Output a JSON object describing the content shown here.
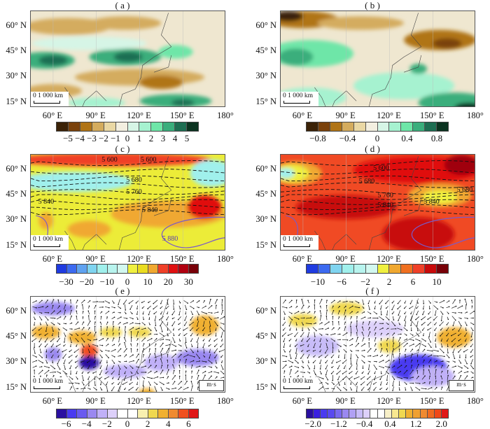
{
  "panels": [
    {
      "id": "a",
      "title": "( a )",
      "lat_ticks": [
        "60° N",
        "45° N",
        "30° N",
        "15° N"
      ],
      "lon_ticks": [
        "60° E",
        "90° E",
        "120° E",
        "150° E",
        "180°"
      ],
      "scale_bar": "0  1 000 km",
      "colorbar": {
        "colors": [
          "#3b2207",
          "#7a420c",
          "#b07416",
          "#d4ac5e",
          "#ead8a4",
          "#f3efe0",
          "#d6f5e6",
          "#a6f2d0",
          "#6ee6a8",
          "#3aae7c",
          "#1d6e52",
          "#0b3320"
        ],
        "labels": [
          "−5",
          "−4",
          "−3",
          "−2",
          "−1",
          "0",
          "1",
          "2",
          "3",
          "4",
          "5"
        ]
      },
      "contour_labels": [],
      "reference_vector": ""
    },
    {
      "id": "b",
      "title": "( b )",
      "lat_ticks": [
        "60° N",
        "45° N",
        "30° N",
        "15° N"
      ],
      "lon_ticks": [
        "60° E",
        "90° E",
        "120° E",
        "150° E",
        "180°"
      ],
      "scale_bar": "0  1 000 km",
      "colorbar": {
        "colors": [
          "#3b2207",
          "#7a420c",
          "#b07416",
          "#d4ac5e",
          "#ead8a4",
          "#f3efe0",
          "#d6f5e6",
          "#a6f2d0",
          "#6ee6a8",
          "#3aae7c",
          "#1d6e52",
          "#0b3320"
        ],
        "labels": [
          "−0.8",
          "−0.4",
          "0",
          "0.4",
          "0.8"
        ]
      },
      "contour_labels": [],
      "reference_vector": ""
    },
    {
      "id": "c",
      "title": "( c )",
      "lat_ticks": [
        "60° N",
        "45° N",
        "30° N",
        "15° N"
      ],
      "lon_ticks": [
        "60° E",
        "90° E",
        "120° E",
        "150° E",
        "180°"
      ],
      "scale_bar": "0  1 000 km",
      "colorbar": {
        "colors": [
          "#1f3be0",
          "#3c6af0",
          "#5fa2f0",
          "#7fd4f0",
          "#a0f0ec",
          "#b8f4ee",
          "#d2f8f0",
          "#f0f040",
          "#eadc20",
          "#f0a830",
          "#f04028",
          "#e01010",
          "#b00010",
          "#780008"
        ],
        "labels": [
          "−30",
          "−20",
          "−10",
          "0",
          "10",
          "20",
          "30"
        ]
      },
      "contour_labels": [
        "5 600",
        "5 600",
        "5 680",
        "5 760",
        "5 840",
        "5 840",
        "5 880"
      ],
      "reference_vector": ""
    },
    {
      "id": "d",
      "title": "( d )",
      "lat_ticks": [
        "60° N",
        "45° N",
        "30° N",
        "15° N"
      ],
      "lon_ticks": [
        "60° E",
        "90° E",
        "120° E",
        "150° E",
        "180°"
      ],
      "scale_bar": "0  1 000 km",
      "colorbar": {
        "colors": [
          "#1f3be0",
          "#3c6af0",
          "#7fd4f0",
          "#a0f0ec",
          "#b8f4ee",
          "#d2f8f0",
          "#f0f040",
          "#f0a830",
          "#f07020",
          "#f04028",
          "#c80a0a",
          "#780008"
        ],
        "labels": [
          "−10",
          "−6",
          "−2",
          "2",
          "6",
          "10"
        ]
      },
      "contour_labels": [
        "5 600",
        "5 680",
        "5 680",
        "5 760",
        "5 840",
        "5 840"
      ],
      "reference_vector": ""
    },
    {
      "id": "e",
      "title": "( e )",
      "lat_ticks": [
        "60° N",
        "45° N",
        "30° N",
        "15° N"
      ],
      "lon_ticks": [
        "60° E",
        "90° E",
        "120° E",
        "150° E",
        "180°"
      ],
      "scale_bar": "0  1 000 km",
      "colorbar": {
        "colors": [
          "#2a0fa0",
          "#4a3af0",
          "#6a5af0",
          "#9a88f0",
          "#c0b0f8",
          "#ddd0fa",
          "#ffffff",
          "#ffffff",
          "#f8f0b0",
          "#f0d850",
          "#f0b030",
          "#f08a30",
          "#f05020",
          "#e01818"
        ],
        "labels": [
          "−6",
          "−4",
          "−2",
          "0",
          "2",
          "4",
          "6"
        ]
      },
      "contour_labels": [],
      "reference_vector": "m·s"
    },
    {
      "id": "f",
      "title": "( f )",
      "lat_ticks": [
        "60° N",
        "45° N",
        "30° N",
        "15° N"
      ],
      "lon_ticks": [
        "60° E",
        "90° E",
        "120° E",
        "150° E",
        "180°"
      ],
      "scale_bar": "0  1 000 km",
      "colorbar": {
        "colors": [
          "#2a0fa0",
          "#3a20e0",
          "#4a3af0",
          "#5a4af0",
          "#7a6af0",
          "#9a88f0",
          "#b0a0f4",
          "#c8bcf8",
          "#ddd0fa",
          "#ffffff",
          "#ffffff",
          "#f8f0c8",
          "#f8e890",
          "#f0d850",
          "#f0b030",
          "#f0a030",
          "#f08a30",
          "#f06a20",
          "#f04818",
          "#e01818"
        ],
        "labels": [
          "−2.0",
          "−1.2",
          "−0.4",
          "0.4",
          "1.2",
          "2.0"
        ]
      },
      "contour_labels": [],
      "reference_vector": "m·s"
    }
  ]
}
